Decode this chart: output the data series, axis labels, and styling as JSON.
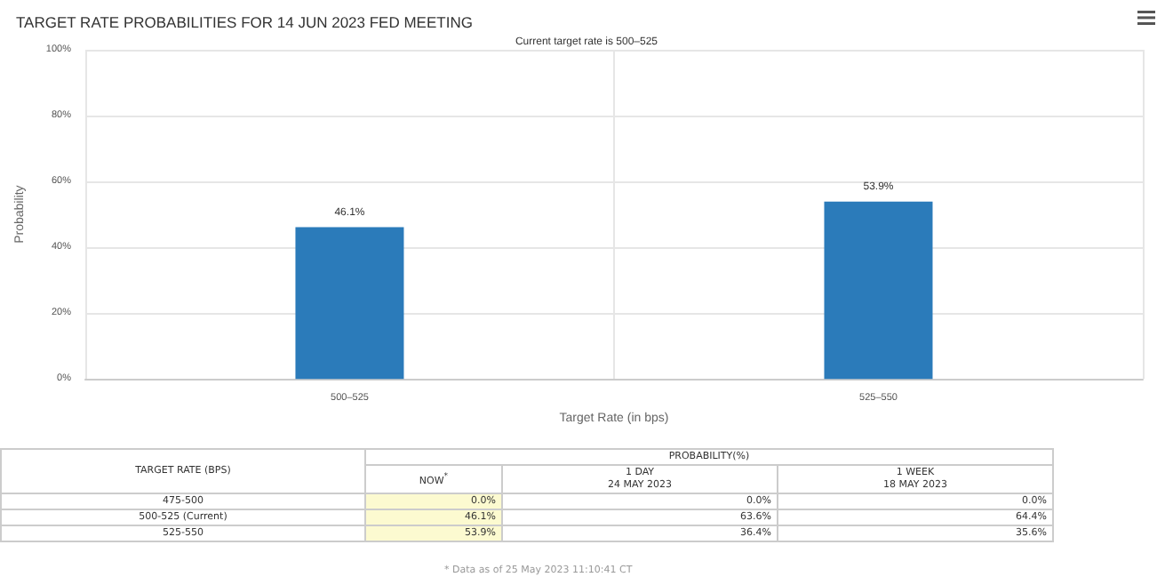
{
  "chart_data": [
    {
      "type": "bar",
      "title": "TARGET RATE PROBABILITIES FOR 14 JUN 2023 FED MEETING",
      "subtitle": "Current target rate is 500–525",
      "xlabel": "Target Rate (in bps)",
      "ylabel": "Probability",
      "categories": [
        "500–525",
        "525–550"
      ],
      "values": [
        46.1,
        53.9
      ],
      "value_labels": [
        "46.1%",
        "53.9%"
      ],
      "color": "#2b7bba",
      "ylim": [
        0,
        100
      ],
      "yticks": [
        {
          "value": 0,
          "label": "0%"
        },
        {
          "value": 20,
          "label": "20%"
        },
        {
          "value": 40,
          "label": "40%"
        },
        {
          "value": 60,
          "label": "60%"
        },
        {
          "value": 80,
          "label": "80%"
        },
        {
          "value": 100,
          "label": "100%"
        }
      ],
      "grid": true
    },
    {
      "type": "other",
      "title": "PROBABILITY(%)",
      "xlabel": "TARGET RATE (BPS)",
      "categories": [
        "475-500",
        "500-525 (Current)",
        "525-550"
      ],
      "series": [
        {
          "name": "NOW$^{*}$",
          "color": "#fcfad0",
          "values": [
            0.0,
            46.1,
            53.9
          ],
          "value_labels": [
            "0.0%",
            "46.1%",
            "53.9%"
          ]
        },
        {
          "name": "1 DAY\n24 MAY 2023",
          "values": [
            0.0,
            63.6,
            36.4
          ],
          "value_labels": [
            "0.0%",
            "63.6%",
            "36.4%"
          ]
        },
        {
          "name": "1 WEEK\n18 MAY 2023",
          "values": [
            0.0,
            64.4,
            35.6
          ],
          "value_labels": [
            "0.0%",
            "64.4%",
            "35.6%"
          ]
        }
      ],
      "annotations": [
        "* Data as of 25 May 2023 11:10:41 CT"
      ]
    }
  ]
}
